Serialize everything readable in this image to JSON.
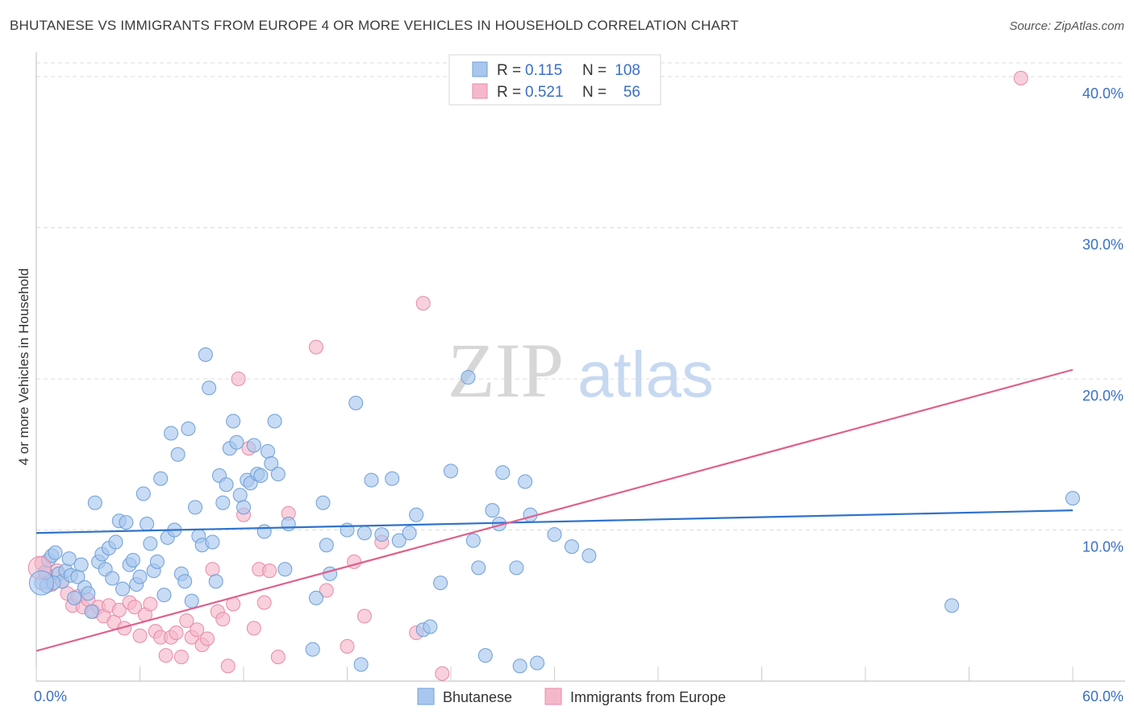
{
  "title": "BHUTANESE VS IMMIGRANTS FROM EUROPE 4 OR MORE VEHICLES IN HOUSEHOLD CORRELATION CHART",
  "source": "Source: ZipAtlas.com",
  "watermark": {
    "zip": "ZIP",
    "atlas": "atlas"
  },
  "colors": {
    "blue_fill": "#a9c7ee",
    "blue_stroke": "#6f9fd8",
    "blue_line": "#2f72cc",
    "pink_fill": "#f5b8cb",
    "pink_stroke": "#e98aa8",
    "pink_line": "#e0608c",
    "grid": "#dcdcdc",
    "tick_label": "#3a6fc4",
    "axis": "#bbbbbb"
  },
  "legend": {
    "r_label": "R =",
    "n_label": "N =",
    "blue": {
      "r": "0.115",
      "n": "108"
    },
    "pink": {
      "r": "0.521",
      "n": "56"
    }
  },
  "chart_data": {
    "type": "scatter",
    "title": "BHUTANESE VS IMMIGRANTS FROM EUROPE 4 OR MORE VEHICLES IN HOUSEHOLD CORRELATION CHART",
    "xlabel": "",
    "ylabel": "4 or more Vehicles in Household",
    "xlim": [
      0,
      60
    ],
    "ylim": [
      0,
      40
    ],
    "x_tick_labels": [
      "0.0%",
      "60.0%"
    ],
    "y_ticks": [
      10,
      20,
      30,
      40
    ],
    "y_tick_labels": [
      "10.0%",
      "20.0%",
      "30.0%",
      "40.0%"
    ],
    "grid": true,
    "legend_position": "top-center",
    "series": [
      {
        "name": "Bhutanese",
        "color": "#a9c7ee",
        "trend": {
          "x": [
            0,
            60
          ],
          "y": [
            9.8,
            11.3
          ]
        },
        "points": [
          [
            0.3,
            6.5
          ],
          [
            0.5,
            7.2
          ],
          [
            0.7,
            8.0
          ],
          [
            0.9,
            8.3
          ],
          [
            1.1,
            8.5
          ],
          [
            1.3,
            7.1
          ],
          [
            1.5,
            6.6
          ],
          [
            1.7,
            7.3
          ],
          [
            1.9,
            8.1
          ],
          [
            2.0,
            7.0
          ],
          [
            2.2,
            5.5
          ],
          [
            2.4,
            6.9
          ],
          [
            2.6,
            7.7
          ],
          [
            2.8,
            6.2
          ],
          [
            3.0,
            5.8
          ],
          [
            3.2,
            4.6
          ],
          [
            3.4,
            11.8
          ],
          [
            3.6,
            7.9
          ],
          [
            3.8,
            8.4
          ],
          [
            4.0,
            7.4
          ],
          [
            4.2,
            8.8
          ],
          [
            4.4,
            6.8
          ],
          [
            4.6,
            9.2
          ],
          [
            4.8,
            10.6
          ],
          [
            5.0,
            6.1
          ],
          [
            5.2,
            10.5
          ],
          [
            5.4,
            7.7
          ],
          [
            5.6,
            8.0
          ],
          [
            5.8,
            6.4
          ],
          [
            6.0,
            6.9
          ],
          [
            6.2,
            12.4
          ],
          [
            6.4,
            10.4
          ],
          [
            6.6,
            9.1
          ],
          [
            6.8,
            7.3
          ],
          [
            7.0,
            7.9
          ],
          [
            7.2,
            13.4
          ],
          [
            7.4,
            5.7
          ],
          [
            7.6,
            9.5
          ],
          [
            7.8,
            16.4
          ],
          [
            8.0,
            10.0
          ],
          [
            8.2,
            15.0
          ],
          [
            8.4,
            7.1
          ],
          [
            8.6,
            6.6
          ],
          [
            8.8,
            16.7
          ],
          [
            9.0,
            5.3
          ],
          [
            9.2,
            11.5
          ],
          [
            9.4,
            9.6
          ],
          [
            9.6,
            9.0
          ],
          [
            9.8,
            21.6
          ],
          [
            10.0,
            19.4
          ],
          [
            10.2,
            9.2
          ],
          [
            10.4,
            6.6
          ],
          [
            10.6,
            13.6
          ],
          [
            10.8,
            11.8
          ],
          [
            11.0,
            13.0
          ],
          [
            11.2,
            15.4
          ],
          [
            11.4,
            17.2
          ],
          [
            11.6,
            15.8
          ],
          [
            11.8,
            12.3
          ],
          [
            12.0,
            11.5
          ],
          [
            12.2,
            13.3
          ],
          [
            12.4,
            13.1
          ],
          [
            12.6,
            15.6
          ],
          [
            12.8,
            13.7
          ],
          [
            13.0,
            13.6
          ],
          [
            13.2,
            9.9
          ],
          [
            13.4,
            15.2
          ],
          [
            13.6,
            14.4
          ],
          [
            13.8,
            17.2
          ],
          [
            14.0,
            13.7
          ],
          [
            14.4,
            7.4
          ],
          [
            14.6,
            10.4
          ],
          [
            16.2,
            5.5
          ],
          [
            16.6,
            11.8
          ],
          [
            16.8,
            9.0
          ],
          [
            17.0,
            7.1
          ],
          [
            18.0,
            10.0
          ],
          [
            18.5,
            18.4
          ],
          [
            19.0,
            9.8
          ],
          [
            19.4,
            13.3
          ],
          [
            20.0,
            9.7
          ],
          [
            20.6,
            13.4
          ],
          [
            21.0,
            9.3
          ],
          [
            21.6,
            9.8
          ],
          [
            22.0,
            11.0
          ],
          [
            22.4,
            3.4
          ],
          [
            22.8,
            3.6
          ],
          [
            23.4,
            6.5
          ],
          [
            24.0,
            13.9
          ],
          [
            25.0,
            20.1
          ],
          [
            25.3,
            9.3
          ],
          [
            25.6,
            7.5
          ],
          [
            26.4,
            11.3
          ],
          [
            26.8,
            10.4
          ],
          [
            27.0,
            13.8
          ],
          [
            27.8,
            7.5
          ],
          [
            28.3,
            13.2
          ],
          [
            28.6,
            11.0
          ],
          [
            29.0,
            1.2
          ],
          [
            30.0,
            9.7
          ],
          [
            31.0,
            8.9
          ],
          [
            32.0,
            8.3
          ],
          [
            16.0,
            2.1
          ],
          [
            18.8,
            1.1
          ],
          [
            26.0,
            1.7
          ],
          [
            28.0,
            1.0
          ],
          [
            53.0,
            5.0
          ],
          [
            60.0,
            12.1
          ],
          [
            0.6,
            6.3
          ],
          [
            1.0,
            6.5
          ]
        ]
      },
      {
        "name": "Immigrants from Europe",
        "color": "#f5b8cb",
        "trend": {
          "x": [
            0,
            60
          ],
          "y": [
            2.0,
            20.6
          ]
        },
        "points": [
          [
            0.3,
            7.8
          ],
          [
            0.6,
            7.1
          ],
          [
            0.9,
            6.4
          ],
          [
            1.2,
            7.3
          ],
          [
            1.5,
            6.6
          ],
          [
            1.8,
            5.8
          ],
          [
            2.1,
            5.0
          ],
          [
            2.4,
            5.6
          ],
          [
            2.7,
            4.9
          ],
          [
            3.0,
            5.4
          ],
          [
            3.3,
            4.6
          ],
          [
            3.6,
            4.9
          ],
          [
            3.9,
            4.3
          ],
          [
            4.2,
            5.0
          ],
          [
            4.5,
            3.9
          ],
          [
            4.8,
            4.7
          ],
          [
            5.1,
            3.5
          ],
          [
            5.4,
            5.2
          ],
          [
            5.7,
            4.9
          ],
          [
            6.0,
            3.0
          ],
          [
            6.3,
            4.4
          ],
          [
            6.6,
            5.1
          ],
          [
            6.9,
            3.3
          ],
          [
            7.2,
            2.9
          ],
          [
            7.5,
            1.7
          ],
          [
            7.8,
            2.9
          ],
          [
            8.1,
            3.2
          ],
          [
            8.4,
            1.6
          ],
          [
            8.7,
            4.0
          ],
          [
            9.0,
            2.9
          ],
          [
            9.3,
            3.4
          ],
          [
            9.6,
            2.4
          ],
          [
            9.9,
            2.8
          ],
          [
            10.2,
            7.4
          ],
          [
            10.5,
            4.6
          ],
          [
            10.8,
            4.1
          ],
          [
            11.1,
            1.0
          ],
          [
            11.4,
            5.1
          ],
          [
            11.7,
            20.0
          ],
          [
            12.0,
            11.0
          ],
          [
            12.3,
            15.4
          ],
          [
            12.6,
            3.5
          ],
          [
            12.9,
            7.4
          ],
          [
            13.2,
            5.2
          ],
          [
            13.5,
            7.3
          ],
          [
            14.0,
            1.6
          ],
          [
            14.6,
            11.1
          ],
          [
            16.2,
            22.1
          ],
          [
            16.8,
            6.0
          ],
          [
            18.0,
            2.3
          ],
          [
            18.4,
            7.9
          ],
          [
            19.0,
            4.3
          ],
          [
            20.0,
            9.2
          ],
          [
            22.0,
            3.2
          ],
          [
            22.4,
            25.0
          ],
          [
            23.5,
            0.5
          ]
        ]
      }
    ],
    "outliers": [
      {
        "series": "Immigrants from Europe",
        "x": 57.0,
        "y": 39.9
      }
    ]
  },
  "bottom_legend": [
    "Bhutanese",
    "Immigrants from Europe"
  ]
}
